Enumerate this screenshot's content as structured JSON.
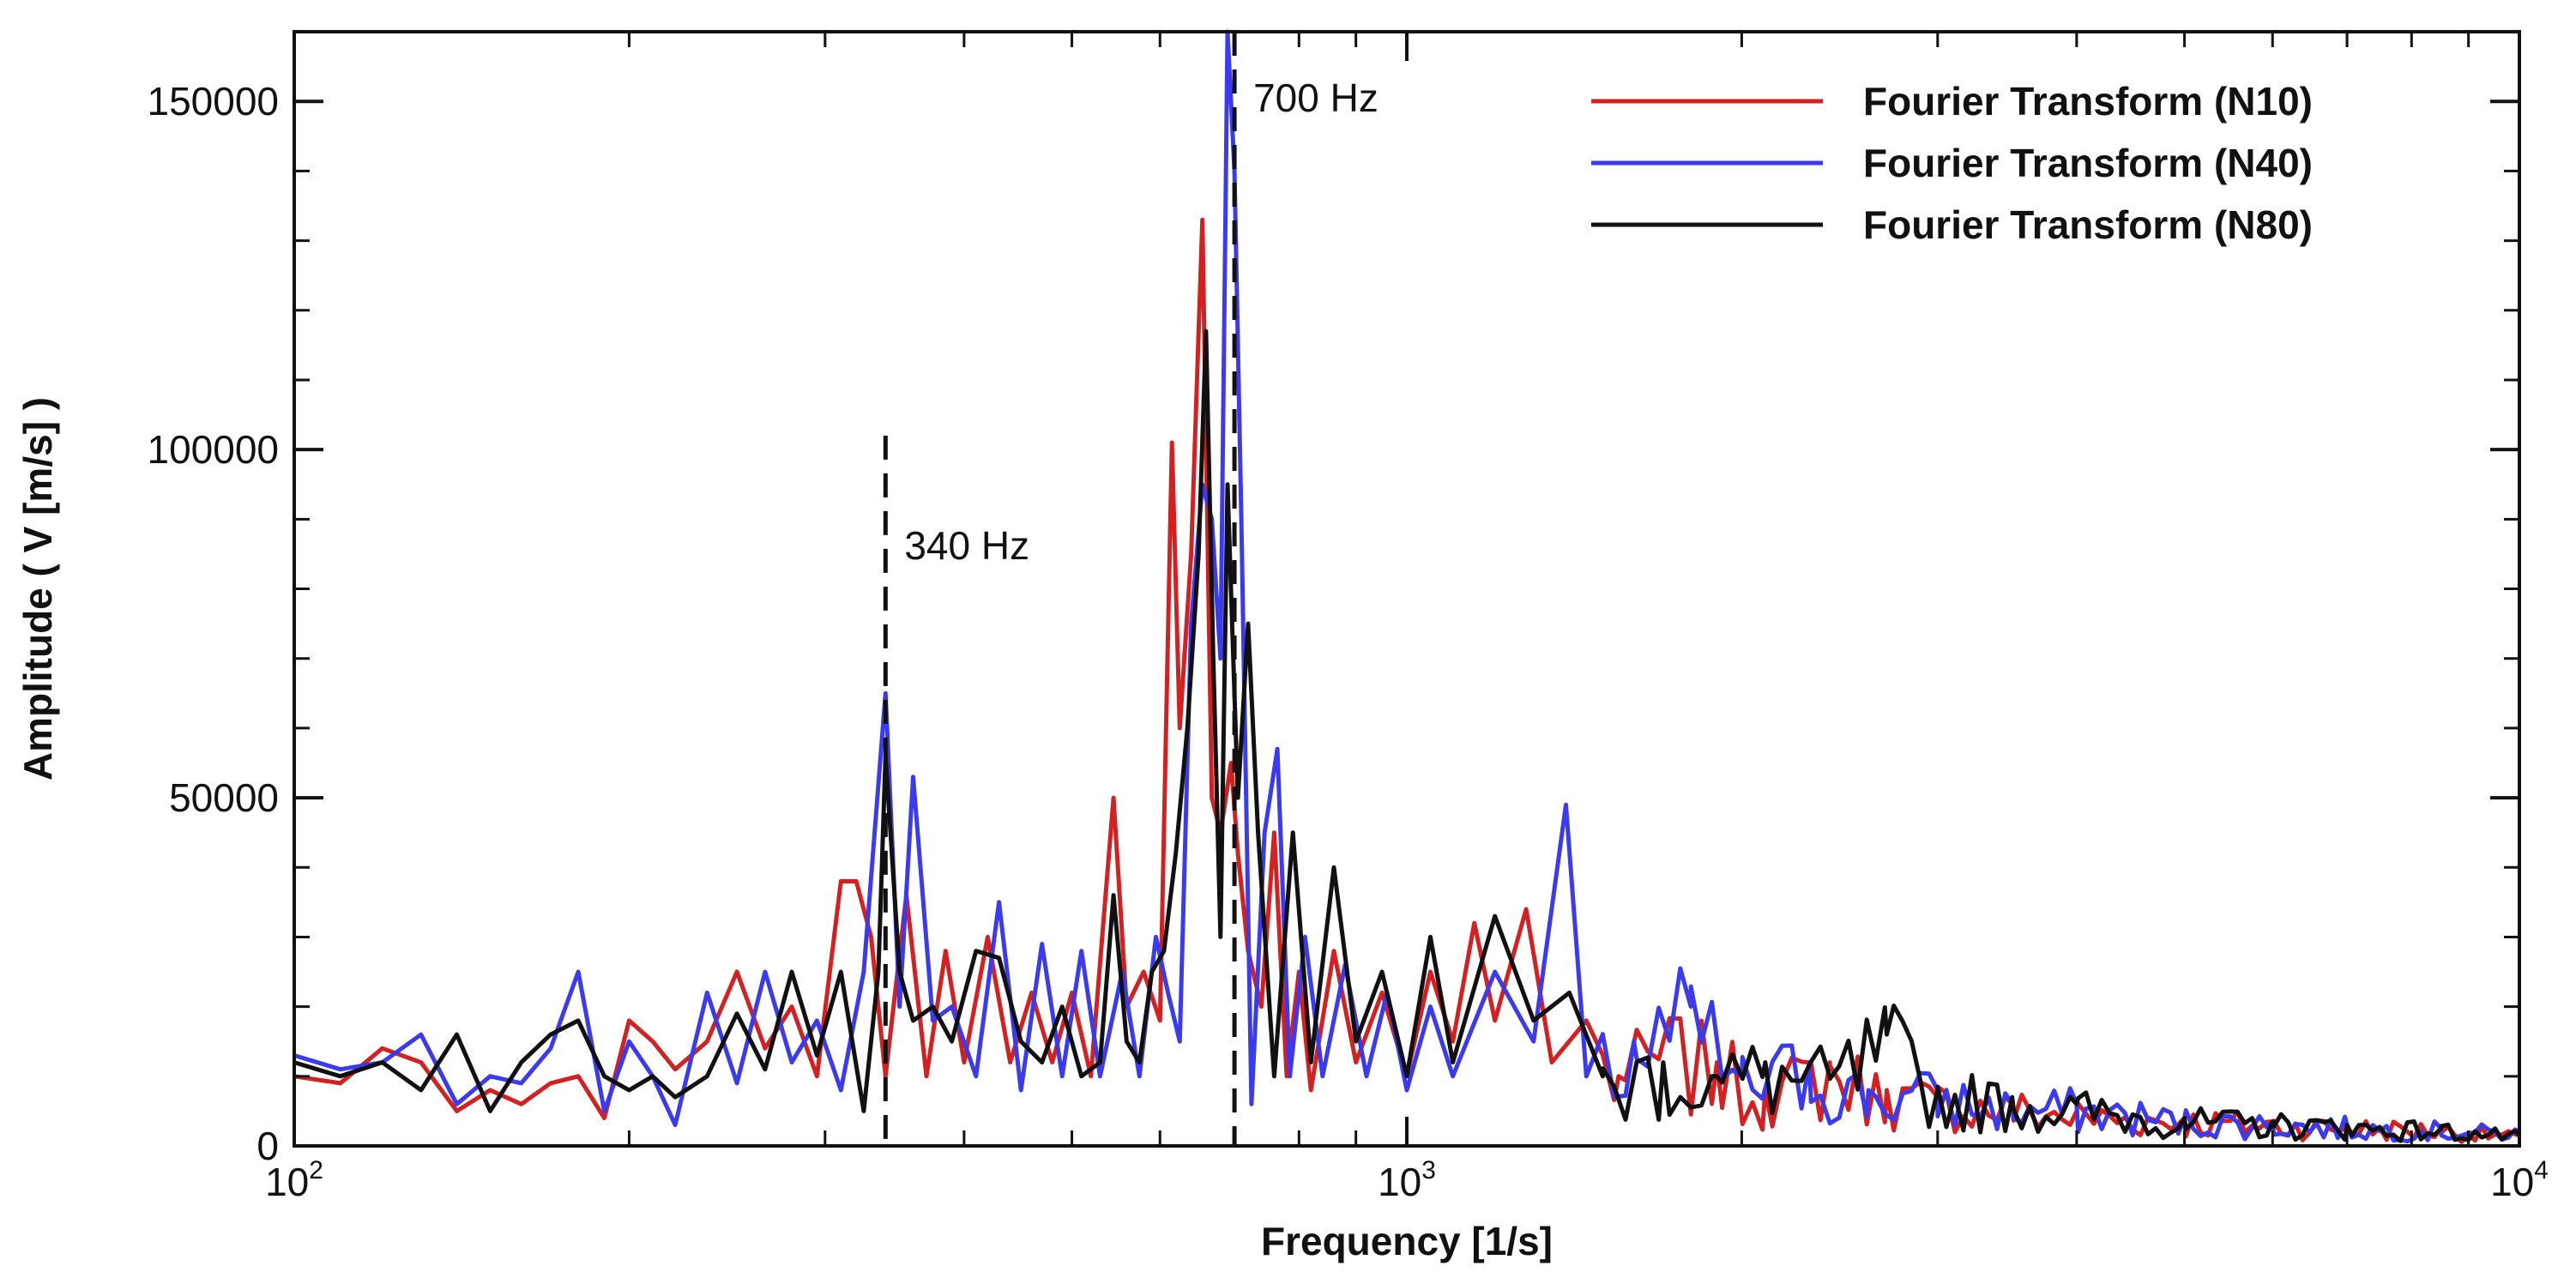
{
  "chart_data": {
    "type": "line",
    "title": "",
    "xlabel": "Frequency [1/s]",
    "ylabel": "Amplitude ( V [m/s] )",
    "xscale": "log",
    "xlim": [
      100,
      10000
    ],
    "ylim": [
      0,
      160000
    ],
    "grid": false,
    "legend_position": "top-right",
    "x_ticks": [
      {
        "value": 100,
        "base": "10",
        "exp": "2"
      },
      {
        "value": 1000,
        "base": "10",
        "exp": "3"
      },
      {
        "value": 10000,
        "base": "10",
        "exp": "4"
      }
    ],
    "y_ticks": [
      {
        "value": 0,
        "label": "0"
      },
      {
        "value": 50000,
        "label": "50000"
      },
      {
        "value": 100000,
        "label": "100000"
      },
      {
        "value": 150000,
        "label": "150000"
      }
    ],
    "annotations": [
      {
        "label": "340 Hz",
        "x": 340,
        "y_top": 102000
      },
      {
        "label": "700 Hz",
        "x": 700,
        "y_top": 160000
      }
    ],
    "series": [
      {
        "name": "Fourier Transform (N10)",
        "color": "#d42020",
        "keypoints": [
          [
            100,
            10000
          ],
          [
            110,
            9000
          ],
          [
            120,
            14000
          ],
          [
            130,
            12000
          ],
          [
            140,
            5000
          ],
          [
            150,
            8000
          ],
          [
            160,
            6000
          ],
          [
            170,
            9000
          ],
          [
            180,
            10000
          ],
          [
            190,
            4000
          ],
          [
            200,
            18000
          ],
          [
            210,
            15000
          ],
          [
            220,
            11000
          ],
          [
            235,
            15000
          ],
          [
            250,
            25000
          ],
          [
            265,
            14000
          ],
          [
            280,
            20000
          ],
          [
            295,
            10000
          ],
          [
            310,
            38000
          ],
          [
            320,
            38000
          ],
          [
            330,
            30000
          ],
          [
            340,
            10000
          ],
          [
            355,
            36000
          ],
          [
            370,
            10000
          ],
          [
            385,
            28000
          ],
          [
            400,
            12000
          ],
          [
            420,
            30000
          ],
          [
            440,
            12000
          ],
          [
            460,
            22000
          ],
          [
            480,
            12000
          ],
          [
            500,
            22000
          ],
          [
            520,
            10000
          ],
          [
            545,
            50000
          ],
          [
            560,
            20000
          ],
          [
            580,
            25000
          ],
          [
            600,
            18000
          ],
          [
            615,
            101000
          ],
          [
            625,
            60000
          ],
          [
            640,
            85000
          ],
          [
            655,
            133000
          ],
          [
            668,
            50000
          ],
          [
            680,
            45000
          ],
          [
            695,
            55000
          ],
          [
            705,
            42000
          ],
          [
            720,
            28000
          ],
          [
            740,
            20000
          ],
          [
            760,
            45000
          ],
          [
            780,
            10000
          ],
          [
            800,
            25000
          ],
          [
            820,
            8000
          ],
          [
            860,
            28000
          ],
          [
            900,
            12000
          ],
          [
            950,
            22000
          ],
          [
            1000,
            10000
          ],
          [
            1050,
            25000
          ],
          [
            1100,
            15000
          ],
          [
            1150,
            32000
          ],
          [
            1200,
            18000
          ],
          [
            1280,
            34000
          ],
          [
            1350,
            12000
          ],
          [
            1450,
            18000
          ],
          [
            1550,
            10000
          ],
          [
            1700,
            15000
          ],
          [
            1900,
            12000
          ],
          [
            2100,
            8000
          ],
          [
            2400,
            12000
          ],
          [
            2700,
            8000
          ],
          [
            3000,
            7000
          ],
          [
            3500,
            6000
          ],
          [
            4000,
            5000
          ],
          [
            5000,
            4000
          ],
          [
            6000,
            3500
          ],
          [
            7000,
            3000
          ],
          [
            8500,
            2500
          ],
          [
            10000,
            1500
          ]
        ]
      },
      {
        "name": "Fourier Transform (N40)",
        "color": "#3a3af0",
        "keypoints": [
          [
            100,
            13000
          ],
          [
            110,
            11000
          ],
          [
            120,
            12000
          ],
          [
            130,
            16000
          ],
          [
            140,
            6000
          ],
          [
            150,
            10000
          ],
          [
            160,
            9000
          ],
          [
            170,
            14000
          ],
          [
            180,
            25000
          ],
          [
            190,
            5000
          ],
          [
            200,
            15000
          ],
          [
            210,
            10000
          ],
          [
            220,
            3000
          ],
          [
            235,
            22000
          ],
          [
            250,
            9000
          ],
          [
            265,
            25000
          ],
          [
            280,
            12000
          ],
          [
            295,
            18000
          ],
          [
            310,
            8000
          ],
          [
            325,
            25000
          ],
          [
            340,
            65000
          ],
          [
            350,
            20000
          ],
          [
            360,
            53000
          ],
          [
            375,
            18000
          ],
          [
            390,
            20000
          ],
          [
            410,
            10000
          ],
          [
            430,
            35000
          ],
          [
            450,
            8000
          ],
          [
            470,
            29000
          ],
          [
            490,
            10000
          ],
          [
            510,
            28000
          ],
          [
            530,
            10000
          ],
          [
            555,
            25000
          ],
          [
            575,
            10000
          ],
          [
            595,
            30000
          ],
          [
            610,
            22000
          ],
          [
            625,
            15000
          ],
          [
            640,
            75000
          ],
          [
            655,
            95000
          ],
          [
            668,
            90000
          ],
          [
            680,
            70000
          ],
          [
            690,
            160000
          ],
          [
            700,
            140000
          ],
          [
            710,
            90000
          ],
          [
            725,
            6000
          ],
          [
            745,
            45000
          ],
          [
            765,
            57000
          ],
          [
            785,
            10000
          ],
          [
            810,
            30000
          ],
          [
            840,
            10000
          ],
          [
            880,
            26000
          ],
          [
            920,
            10000
          ],
          [
            960,
            22000
          ],
          [
            1000,
            8000
          ],
          [
            1050,
            20000
          ],
          [
            1100,
            10000
          ],
          [
            1200,
            25000
          ],
          [
            1300,
            15000
          ],
          [
            1390,
            49000
          ],
          [
            1450,
            10000
          ],
          [
            1600,
            15000
          ],
          [
            1800,
            20000
          ],
          [
            2000,
            10000
          ],
          [
            2300,
            12000
          ],
          [
            2600,
            8000
          ],
          [
            3000,
            8000
          ],
          [
            3500,
            6000
          ],
          [
            4000,
            6000
          ],
          [
            5000,
            4000
          ],
          [
            6000,
            3500
          ],
          [
            7000,
            3000
          ],
          [
            8500,
            2500
          ],
          [
            10000,
            2000
          ]
        ]
      },
      {
        "name": "Fourier Transform (N80)",
        "color": "#111111",
        "keypoints": [
          [
            100,
            12000
          ],
          [
            110,
            10000
          ],
          [
            120,
            12000
          ],
          [
            130,
            8000
          ],
          [
            140,
            16000
          ],
          [
            150,
            5000
          ],
          [
            160,
            12000
          ],
          [
            170,
            16000
          ],
          [
            180,
            18000
          ],
          [
            190,
            10000
          ],
          [
            200,
            8000
          ],
          [
            210,
            10000
          ],
          [
            220,
            7000
          ],
          [
            235,
            10000
          ],
          [
            250,
            19000
          ],
          [
            265,
            11000
          ],
          [
            280,
            25000
          ],
          [
            295,
            13000
          ],
          [
            310,
            25000
          ],
          [
            325,
            5000
          ],
          [
            335,
            25000
          ],
          [
            340,
            56000
          ],
          [
            350,
            25000
          ],
          [
            360,
            18000
          ],
          [
            375,
            20000
          ],
          [
            390,
            15000
          ],
          [
            410,
            28000
          ],
          [
            430,
            27000
          ],
          [
            450,
            15000
          ],
          [
            470,
            12000
          ],
          [
            490,
            20000
          ],
          [
            510,
            10000
          ],
          [
            530,
            12000
          ],
          [
            545,
            36000
          ],
          [
            560,
            15000
          ],
          [
            575,
            12000
          ],
          [
            590,
            25000
          ],
          [
            605,
            28000
          ],
          [
            620,
            42000
          ],
          [
            635,
            60000
          ],
          [
            650,
            85000
          ],
          [
            660,
            117000
          ],
          [
            670,
            70000
          ],
          [
            680,
            30000
          ],
          [
            690,
            95000
          ],
          [
            705,
            50000
          ],
          [
            720,
            75000
          ],
          [
            735,
            45000
          ],
          [
            760,
            10000
          ],
          [
            790,
            45000
          ],
          [
            820,
            12000
          ],
          [
            860,
            40000
          ],
          [
            900,
            15000
          ],
          [
            950,
            25000
          ],
          [
            1000,
            10000
          ],
          [
            1050,
            30000
          ],
          [
            1100,
            12000
          ],
          [
            1200,
            33000
          ],
          [
            1300,
            18000
          ],
          [
            1400,
            22000
          ],
          [
            1500,
            10000
          ],
          [
            1700,
            12000
          ],
          [
            1900,
            10000
          ],
          [
            2100,
            12000
          ],
          [
            2400,
            10000
          ],
          [
            2700,
            16000
          ],
          [
            3000,
            8000
          ],
          [
            3500,
            7000
          ],
          [
            4000,
            6000
          ],
          [
            5000,
            4000
          ],
          [
            6000,
            3500
          ],
          [
            7000,
            3000
          ],
          [
            8500,
            2500
          ],
          [
            10000,
            1500
          ]
        ]
      }
    ]
  }
}
